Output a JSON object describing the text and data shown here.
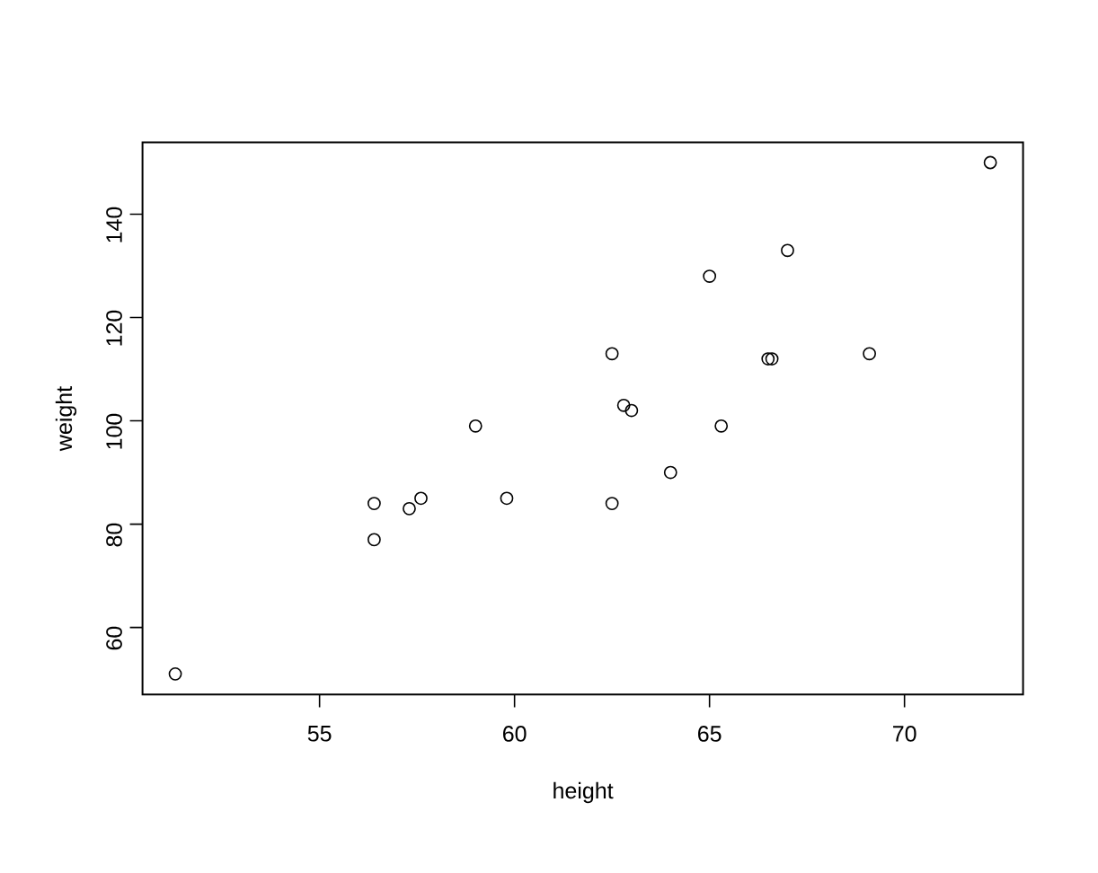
{
  "chart_data": {
    "type": "scatter",
    "xlabel": "height",
    "ylabel": "weight",
    "x": [
      51.3,
      56.4,
      56.4,
      57.3,
      57.6,
      59.0,
      59.8,
      62.5,
      62.5,
      62.8,
      63.0,
      64.0,
      65.0,
      65.3,
      66.5,
      66.6,
      67.0,
      69.1,
      72.2
    ],
    "values": [
      51,
      84,
      77,
      83,
      85,
      99,
      85,
      113,
      84,
      103,
      102,
      90,
      128,
      99,
      112,
      112,
      133,
      113,
      150
    ],
    "color": "#000000",
    "marker": "circle",
    "xlim": [
      50.46,
      73.04
    ],
    "ylim": [
      47.0,
      153.9
    ],
    "xticks": [
      55,
      60,
      65,
      70
    ],
    "yticks": [
      60,
      80,
      100,
      120,
      140
    ]
  }
}
